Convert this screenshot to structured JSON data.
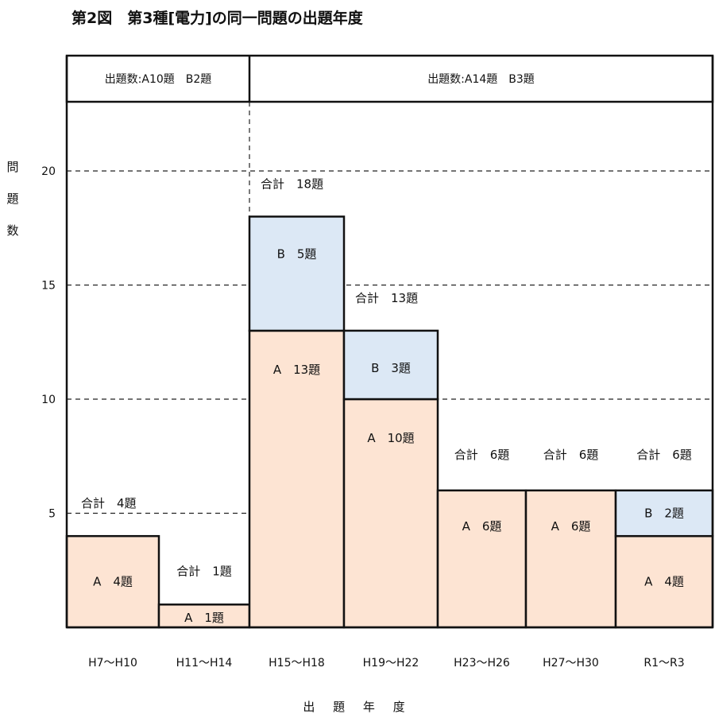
{
  "title": "第2図　第3種[電力]の同一問題の出題年度",
  "ylabel_chars": [
    "問",
    "題",
    "数"
  ],
  "xlabel": "出 題 年 度",
  "colors": {
    "A": "#fde4d3",
    "B": "#dce8f5",
    "border": "#111111",
    "grid": "#222222"
  },
  "header_groups": [
    {
      "label": "出題数:A10題　B2題",
      "span": [
        0,
        1
      ]
    },
    {
      "label": "出題数:A14題　B3題",
      "span": [
        2,
        6
      ]
    }
  ],
  "chart_data": {
    "type": "bar",
    "stacked": true,
    "categories": [
      "H7〜H10",
      "H11〜H14",
      "H15〜H18",
      "H19〜H22",
      "H23〜H26",
      "H27〜H30",
      "R1〜R3"
    ],
    "series": [
      {
        "name": "A",
        "values": [
          4,
          1,
          13,
          10,
          6,
          6,
          4
        ]
      },
      {
        "name": "B",
        "values": [
          0,
          0,
          5,
          3,
          0,
          0,
          2
        ]
      }
    ],
    "segment_labels": {
      "A": [
        "A　4題",
        "A　1題",
        "A　13題",
        "A　10題",
        "A　6題",
        "A　6題",
        "A　4題"
      ],
      "B": [
        "",
        "",
        "B　5題",
        "B　3題",
        "",
        "",
        "B　2題"
      ]
    },
    "total_labels": [
      "合計　4題",
      "合計　1題",
      "合計　18題",
      "合計　13題",
      "合計　6題",
      "合計　6題",
      "合計　6題"
    ],
    "ylim": [
      0,
      23
    ],
    "yticks": [
      5,
      10,
      15,
      20
    ],
    "grid": true
  }
}
